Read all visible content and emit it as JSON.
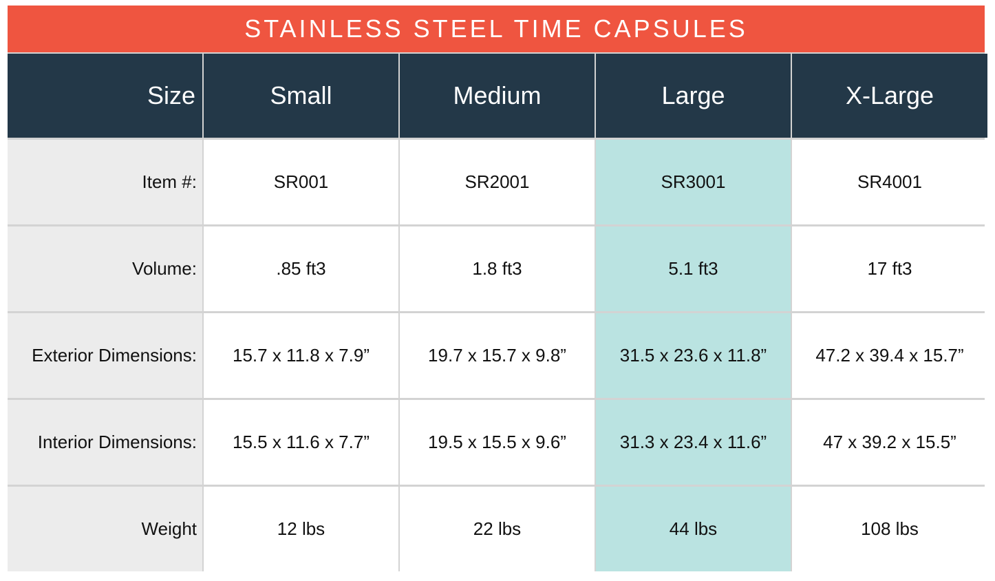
{
  "title": "STAINLESS STEEL TIME CAPSULES",
  "header": {
    "label": "Size",
    "columns": [
      "Small",
      "Medium",
      "Large",
      "X-Large"
    ]
  },
  "rows": [
    {
      "label": "Item #:",
      "values": [
        "SR001",
        "SR2001",
        "SR3001",
        "SR4001"
      ]
    },
    {
      "label": "Volume:",
      "values": [
        ".85 ft3",
        "1.8 ft3",
        "5.1 ft3",
        "17 ft3"
      ]
    },
    {
      "label": "Exterior Dimensions:",
      "values": [
        "15.7 x 11.8 x 7.9”",
        "19.7 x 15.7 x 9.8”",
        "31.5 x 23.6 x 11.8”",
        "47.2 x 39.4 x 15.7”"
      ]
    },
    {
      "label": "Interior Dimensions:",
      "values": [
        "15.5 x 11.6 x 7.7”",
        "19.5 x 15.5 x 9.6”",
        "31.3 x 23.4 x 11.6”",
        "47 x 39.2 x 15.5”"
      ]
    },
    {
      "label": "Weight",
      "values": [
        "12 lbs",
        "22 lbs",
        "44 lbs",
        "108 lbs"
      ]
    }
  ],
  "colors": {
    "title_background": "#ef5540",
    "header_background": "#233848",
    "row_label_background": "#ececec",
    "highlight_column_background": "#bae3e1"
  },
  "highlighted_column": "Large"
}
